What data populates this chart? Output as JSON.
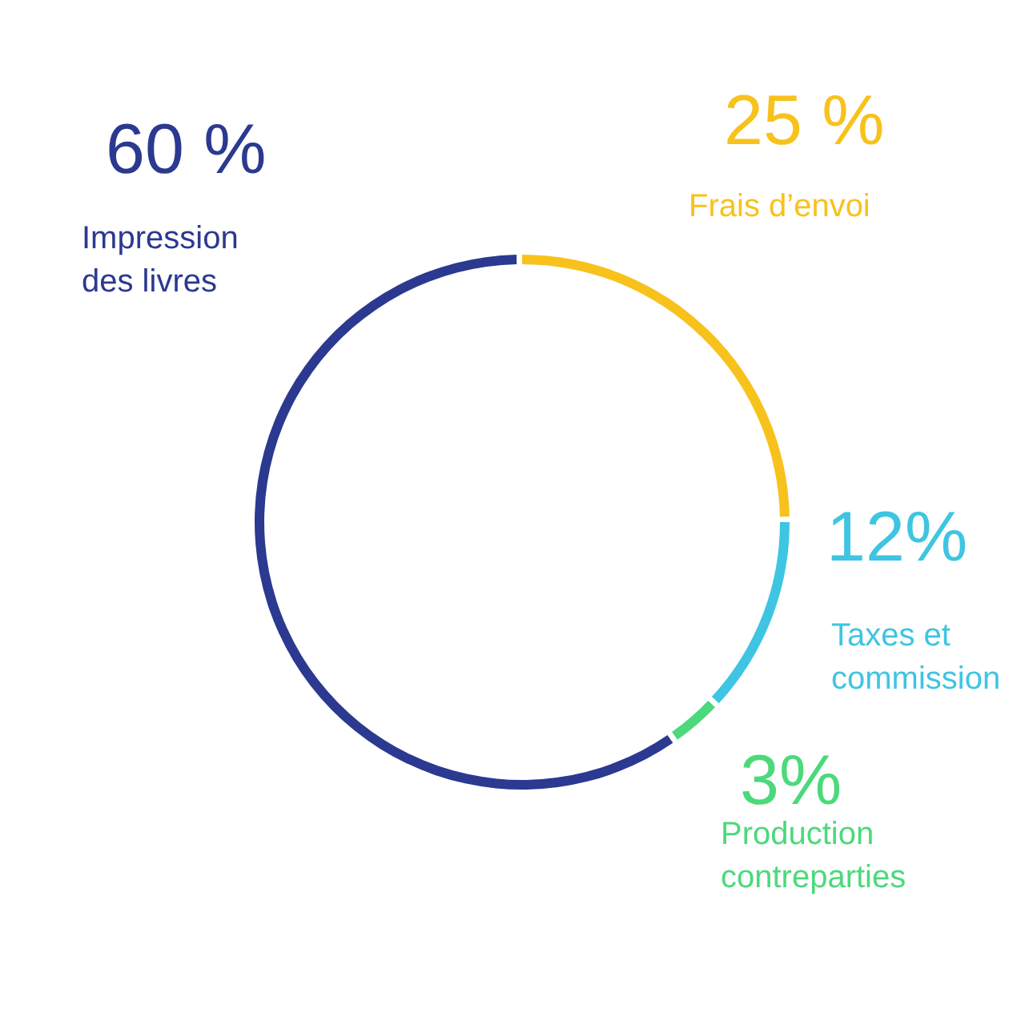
{
  "chart_data": {
    "type": "donut",
    "categories": [
      "Frais d’envoi",
      "Taxes et commission",
      "Production contreparties",
      "Impression des livres"
    ],
    "values": [
      25,
      12,
      3,
      60
    ],
    "colors": [
      "#f8c21c",
      "#3ec5e2",
      "#4cd97b",
      "#2b3990"
    ],
    "value_labels": [
      "25 %",
      "12%",
      "3%",
      "60 %"
    ]
  }
}
